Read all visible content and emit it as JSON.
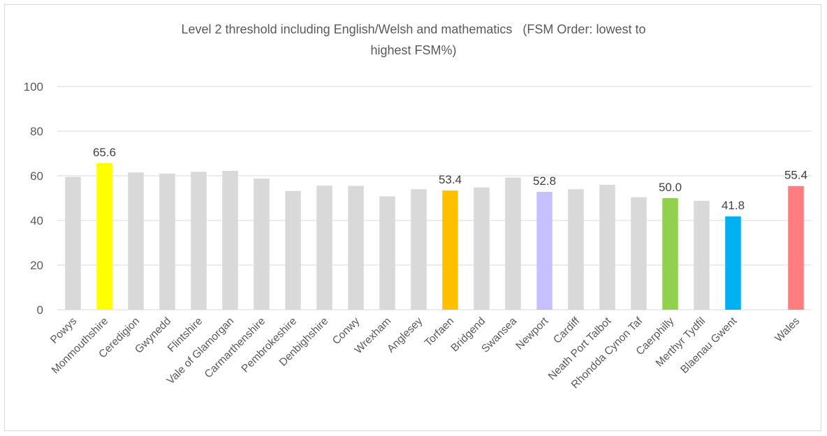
{
  "chart_data": {
    "type": "bar",
    "title_lines": [
      "Level 2 threshold including English/Welsh and mathematics   (FSM Order: lowest to",
      "highest FSM%)"
    ],
    "xlabel": "",
    "ylabel": "",
    "ylim": [
      0,
      100
    ],
    "yticks": [
      0,
      20,
      40,
      60,
      80,
      100
    ],
    "grid": true,
    "legend": "none",
    "categories": [
      "Powys",
      "Monmouthshire",
      "Ceredigion",
      "Gwynedd",
      "Flintshire",
      "Vale of Glamorgan",
      "Carmarthenshire",
      "Pembrokeshire",
      "Denbighshire",
      "Conwy",
      "Wrexham",
      "Anglesey",
      "Torfaen",
      "Bridgend",
      "Swansea",
      "Newport",
      "Cardiff",
      "Neath Port Talbot",
      "Rhondda Cynon Taf",
      "Caerphilly",
      "Merthyr Tydfil",
      "Blaenau Gwent",
      "",
      "Wales"
    ],
    "values": [
      59.5,
      65.6,
      61.5,
      61.0,
      61.8,
      62.2,
      58.8,
      53.2,
      55.6,
      55.5,
      50.8,
      54.0,
      53.4,
      54.8,
      59.2,
      52.8,
      54.0,
      56.0,
      50.4,
      50.0,
      48.8,
      41.8,
      null,
      55.4
    ],
    "colors": [
      "#d9d9d9",
      "#ffff00",
      "#d9d9d9",
      "#d9d9d9",
      "#d9d9d9",
      "#d9d9d9",
      "#d9d9d9",
      "#d9d9d9",
      "#d9d9d9",
      "#d9d9d9",
      "#d9d9d9",
      "#d9d9d9",
      "#ffc000",
      "#d9d9d9",
      "#d9d9d9",
      "#c5c0ff",
      "#d9d9d9",
      "#d9d9d9",
      "#d9d9d9",
      "#92d050",
      "#d9d9d9",
      "#00b0f0",
      null,
      "#ff7c80"
    ],
    "data_labels": [
      "",
      "65.6",
      "",
      "",
      "",
      "",
      "",
      "",
      "",
      "",
      "",
      "",
      "53.4",
      "",
      "",
      "52.8",
      "",
      "",
      "",
      "50.0",
      "",
      "41.8",
      "",
      "55.4"
    ]
  }
}
